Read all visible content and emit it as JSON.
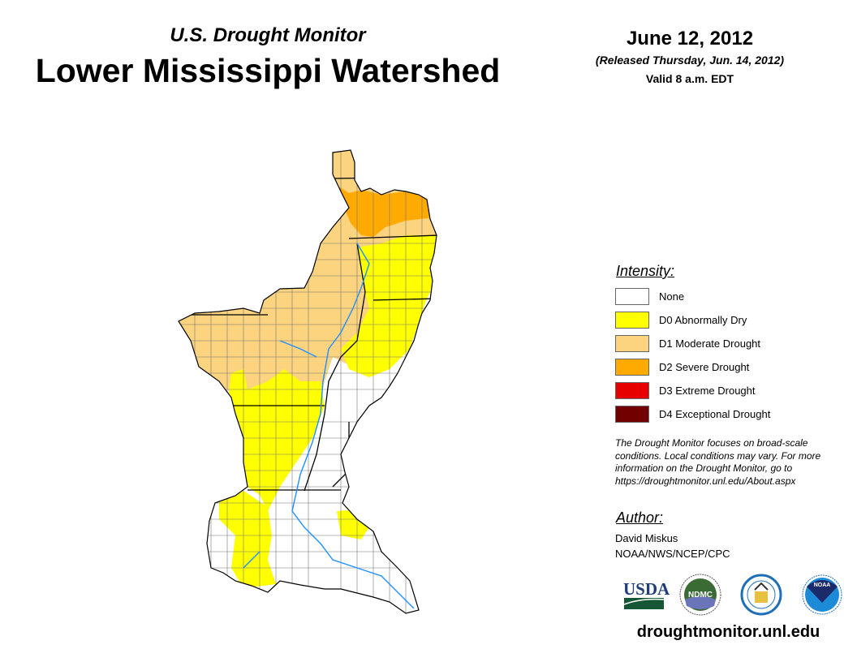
{
  "header": {
    "subtitle": "U.S. Drought Monitor",
    "title": "Lower Mississippi Watershed",
    "date": "June 12, 2012",
    "released": "(Released Thursday, Jun. 14, 2012)",
    "valid": "Valid 8 a.m. EDT"
  },
  "legend": {
    "heading": "Intensity:",
    "items": [
      {
        "label": "None",
        "color": "#ffffff"
      },
      {
        "label": "D0 Abnormally Dry",
        "color": "#ffff00"
      },
      {
        "label": "D1 Moderate Drought",
        "color": "#fcd37f"
      },
      {
        "label": "D2 Severe Drought",
        "color": "#ffaa00"
      },
      {
        "label": "D3 Extreme Drought",
        "color": "#e60000"
      },
      {
        "label": "D4 Exceptional Drought",
        "color": "#730000"
      }
    ]
  },
  "note": "The Drought Monitor focuses on broad-scale conditions. Local conditions may vary. For more information on the Drought Monitor, go to https://droughtmonitor.unl.edu/About.aspx",
  "author": {
    "heading": "Author:",
    "name": "David Miskus",
    "org": "NOAA/NWS/NCEP/CPC"
  },
  "logos": {
    "usda": "USDA",
    "ndmc": "NDMC",
    "noaa": "NOAA"
  },
  "url": "droughtmonitor.unl.edu"
}
